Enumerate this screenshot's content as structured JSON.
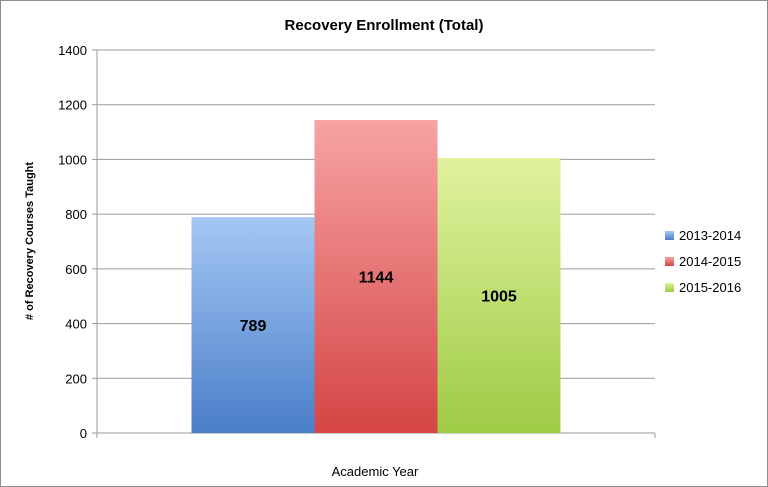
{
  "chart_data": {
    "type": "bar",
    "title": "Recovery Enrollment (Total)",
    "xlabel": "Academic Year",
    "ylabel": "# of Recovery Courses Taught",
    "ylim": [
      0,
      1400
    ],
    "yticks": [
      0,
      200,
      400,
      600,
      800,
      1000,
      1200,
      1400
    ],
    "grid": true,
    "legend_position": "right",
    "series": [
      {
        "name": "2013-2014",
        "values": [
          789
        ],
        "label": "789",
        "color": "#5b8fd6",
        "color_top": "#a5c8f5",
        "color_bottom": "#4a7ec9"
      },
      {
        "name": "2014-2015",
        "values": [
          1144
        ],
        "label": "1144",
        "color": "#d9575a",
        "color_top": "#f7a3a3",
        "color_bottom": "#d54545"
      },
      {
        "name": "2015-2016",
        "values": [
          1005
        ],
        "label": "1005",
        "color": "#a8cf56",
        "color_top": "#e0f29e",
        "color_bottom": "#9ecb45"
      }
    ]
  }
}
